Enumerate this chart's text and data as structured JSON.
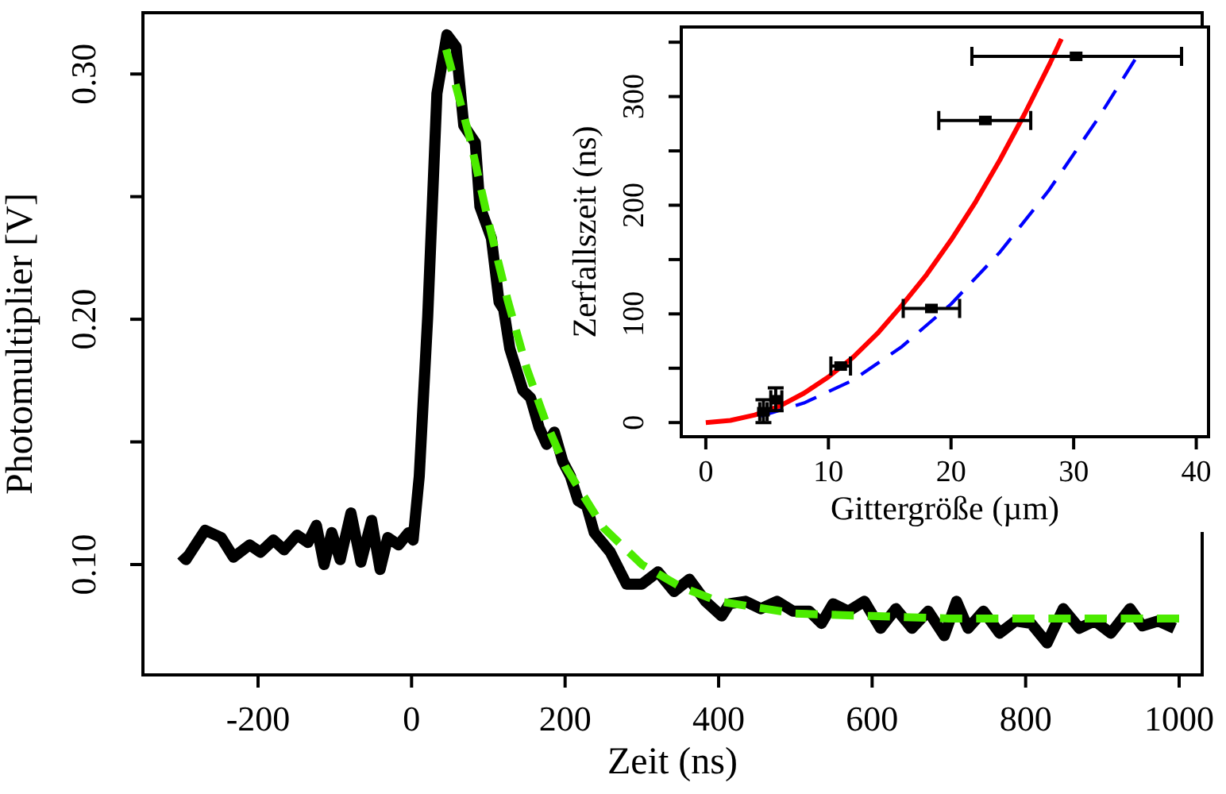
{
  "chart_data": [
    {
      "type": "line",
      "xlabel": "Zeit (ns)",
      "ylabel": "Photomultiplier [V]",
      "xlim": [
        -350,
        1030
      ],
      "ylim": [
        0.055,
        0.325
      ],
      "xticks": [
        -200,
        0,
        200,
        400,
        600,
        800,
        1000
      ],
      "yticks": [
        {
          "value": 0.1,
          "label": "0.10"
        },
        {
          "value": 0.15,
          "label": null
        },
        {
          "value": 0.2,
          "label": "0.20"
        },
        {
          "value": 0.25,
          "label": null
        },
        {
          "value": 0.3,
          "label": "0.30"
        }
      ],
      "grid": false,
      "series": [
        {
          "color": "#000000",
          "line_style": "solid",
          "x": [
            -300,
            -294,
            -269,
            -248,
            -232,
            -211,
            -197,
            -180,
            -166,
            -149,
            -135,
            -124,
            -114,
            -104,
            -93,
            -79,
            -66,
            -52,
            -41,
            -31,
            -17,
            -4,
            2,
            10,
            21,
            33,
            46,
            58,
            68,
            83,
            89,
            104,
            114,
            120,
            128,
            145,
            155,
            166,
            176,
            186,
            197,
            207,
            217,
            228,
            238,
            259,
            280,
            300,
            321,
            342,
            362,
            383,
            404,
            414,
            435,
            455,
            476,
            497,
            518,
            534,
            549,
            569,
            590,
            611,
            631,
            652,
            673,
            694,
            710,
            725,
            745,
            766,
            787,
            807,
            828,
            849,
            870,
            890,
            911,
            936,
            952,
            973,
            994
          ],
          "values": [
            0.104,
            0.102,
            0.114,
            0.111,
            0.103,
            0.108,
            0.105,
            0.11,
            0.106,
            0.112,
            0.109,
            0.116,
            0.1,
            0.113,
            0.102,
            0.121,
            0.101,
            0.118,
            0.098,
            0.111,
            0.108,
            0.113,
            0.11,
            0.136,
            0.201,
            0.292,
            0.316,
            0.311,
            0.279,
            0.272,
            0.246,
            0.233,
            0.207,
            0.204,
            0.188,
            0.171,
            0.168,
            0.156,
            0.149,
            0.154,
            0.142,
            0.136,
            0.126,
            0.124,
            0.113,
            0.105,
            0.092,
            0.092,
            0.097,
            0.089,
            0.094,
            0.085,
            0.079,
            0.084,
            0.085,
            0.082,
            0.085,
            0.081,
            0.081,
            0.076,
            0.084,
            0.081,
            0.085,
            0.074,
            0.082,
            0.074,
            0.081,
            0.071,
            0.085,
            0.074,
            0.081,
            0.072,
            0.077,
            0.076,
            0.068,
            0.082,
            0.074,
            0.077,
            0.072,
            0.082,
            0.075,
            0.077,
            0.074
          ]
        },
        {
          "color": "#4ceb00",
          "line_style": "dashed",
          "x": [
            45,
            75,
            100,
            125,
            150,
            175,
            200,
            250,
            300,
            350,
            400,
            500,
            600,
            700,
            800,
            1000
          ],
          "values": [
            0.31,
            0.275,
            0.24,
            0.208,
            0.18,
            0.158,
            0.14,
            0.115,
            0.1,
            0.091,
            0.085,
            0.08,
            0.079,
            0.078,
            0.078,
            0.078
          ]
        }
      ]
    },
    {
      "type": "scatter",
      "xlabel": "Gittergröße (µm)",
      "ylabel": "Zerfallszeit (ns)",
      "xlim": [
        -2,
        41
      ],
      "ylim": [
        -13,
        364
      ],
      "xticks": [
        0,
        10,
        20,
        30,
        40
      ],
      "yticks": [
        0,
        {
          "value": 50,
          "label": null
        },
        100,
        {
          "value": 150,
          "label": null
        },
        200,
        {
          "value": 250,
          "label": null
        },
        300,
        {
          "value": 350,
          "label": null
        }
      ],
      "grid": false,
      "series": [
        {
          "type": "line",
          "color": "#ff0000",
          "line_style": "solid",
          "x": [
            0,
            2,
            4,
            6,
            8,
            10,
            12,
            14,
            16,
            18,
            20,
            22,
            24,
            26,
            28,
            29
          ],
          "values": [
            0,
            2,
            7,
            15,
            27,
            42,
            60,
            82,
            108,
            136,
            168,
            203,
            242,
            284,
            329,
            353
          ]
        },
        {
          "type": "line",
          "color": "#0000ff",
          "line_style": "dashed",
          "x": [
            4.5,
            8,
            12,
            16,
            20,
            24,
            28,
            32,
            35
          ],
          "values": [
            6,
            18,
            39,
            70,
            109,
            157,
            214,
            280,
            334
          ]
        },
        {
          "color": "#000000",
          "marker": "square",
          "x": [
            30.2,
            22.8,
            18.4,
            11,
            5.7,
            4.7
          ],
          "values": [
            337,
            278,
            105,
            52,
            21,
            10
          ],
          "xerrors": [
            [
              21.7,
              38.8
            ],
            [
              19,
              26.5
            ],
            [
              16.1,
              20.7
            ],
            [
              10.2,
              11.8
            ],
            [
              5.3,
              6.2
            ],
            [
              4.4,
              5
            ]
          ],
          "errors": [
            null,
            null,
            null,
            null,
            [
              11,
              32
            ],
            [
              0,
              21
            ]
          ]
        }
      ]
    }
  ]
}
